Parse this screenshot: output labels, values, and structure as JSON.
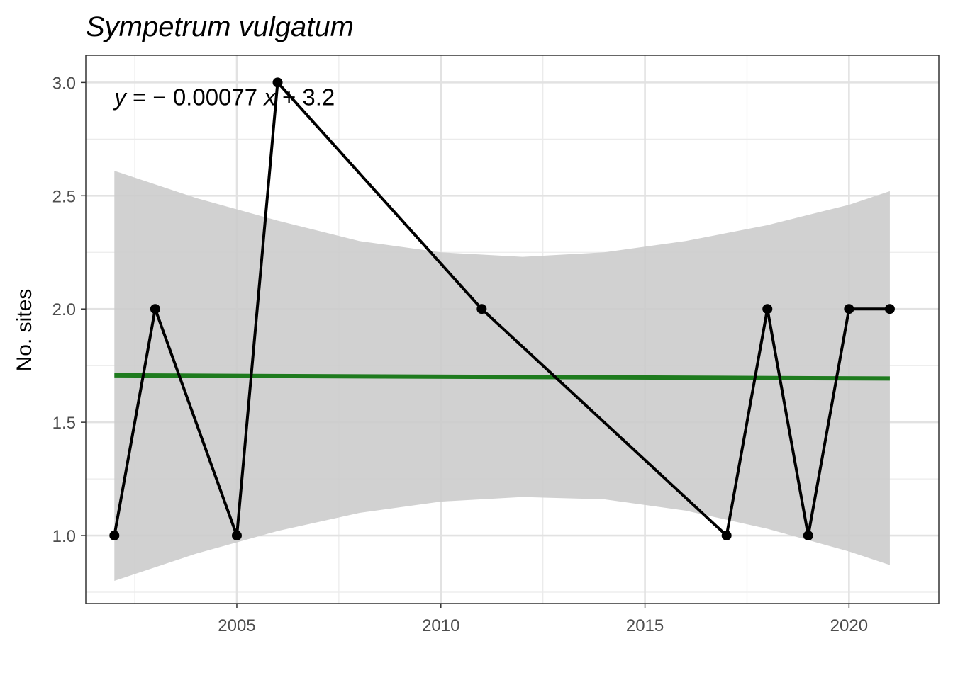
{
  "chart_data": {
    "type": "line",
    "title": "Sympetrum vulgatum",
    "xlabel": "",
    "ylabel": "No. sites",
    "xlim": [
      2001.3,
      2022.2
    ],
    "ylim": [
      0.7,
      3.12
    ],
    "x_ticks": [
      2005,
      2010,
      2015,
      2020
    ],
    "x_tick_labels": [
      "2005",
      "2010",
      "2015",
      "2020"
    ],
    "y_ticks": [
      1.0,
      1.5,
      2.0,
      2.5,
      3.0
    ],
    "y_tick_labels": [
      "1.0",
      "1.5",
      "2.0",
      "2.5",
      "3.0"
    ],
    "grid": true,
    "series": [
      {
        "x": [
          2002,
          2003,
          2005,
          2006,
          2011,
          2017,
          2018,
          2019,
          2020,
          2021
        ],
        "y": [
          1,
          2,
          1,
          3,
          2,
          1,
          2,
          1,
          2,
          2
        ],
        "color": "#000000"
      }
    ],
    "trend": {
      "x": [
        2002,
        2021
      ],
      "y": [
        1.707,
        1.693
      ],
      "color": "#1e7b1e"
    },
    "confidence_band": {
      "x": [
        2002,
        2004,
        2006,
        2008,
        2010,
        2012,
        2014,
        2016,
        2018,
        2020,
        2021
      ],
      "upper": [
        2.61,
        2.49,
        2.39,
        2.3,
        2.25,
        2.23,
        2.25,
        2.3,
        2.37,
        2.46,
        2.52
      ],
      "lower": [
        0.8,
        0.92,
        1.02,
        1.1,
        1.15,
        1.17,
        1.16,
        1.11,
        1.03,
        0.93,
        0.87
      ],
      "color": "#cccccc"
    },
    "annotation": {
      "parts": [
        "y",
        " = − 0.00077 ",
        "x",
        " + 3.2"
      ],
      "x": 2002.0,
      "y": 2.9
    }
  }
}
